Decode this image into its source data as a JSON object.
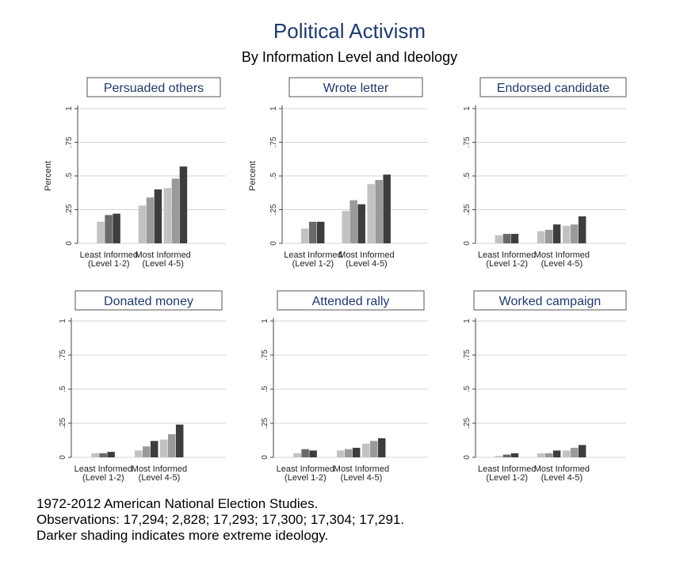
{
  "title": "Political Activism",
  "subtitle": "By Information Level and Ideology",
  "notes": [
    "1972-2012 American National Election Studies.",
    "Observations: 17,294; 2,828; 17,293; 17,300; 17,304; 17,291.",
    "Darker shading indicates more extreme ideology."
  ],
  "colors": {
    "light": "#c2c2c2",
    "mid": "#9a9a9a",
    "dark": "#6a6a6a",
    "darkest": "#3d3d3d",
    "panel_title": "#1f3a6b"
  },
  "chart_data": [
    {
      "type": "bar",
      "title": "Persuaded others",
      "ylabel": "Percent",
      "categories": [
        "Least Informed\n(Level 1-2)",
        "Most Informed\n(Level 4-5)"
      ],
      "yticks": [
        "0",
        ".25",
        ".5",
        ".75",
        "1"
      ],
      "ylim": [
        0,
        1
      ],
      "values": [
        [
          0.16,
          0.21,
          0.22
        ],
        [
          0.28,
          0.34,
          0.4,
          0.41,
          0.48,
          0.57
        ]
      ]
    },
    {
      "type": "bar",
      "title": "Wrote letter",
      "ylabel": "Percent",
      "categories": [
        "Least Informed\n(Level 1-2)",
        "Most Informed\n(Level 4-5)"
      ],
      "yticks": [
        "0",
        ".25",
        ".5",
        ".75",
        "1"
      ],
      "ylim": [
        0,
        1
      ],
      "values": [
        [
          0.11,
          0.16,
          0.16
        ],
        [
          0.24,
          0.32,
          0.29,
          0.44,
          0.47,
          0.51
        ]
      ]
    },
    {
      "type": "bar",
      "title": "Endorsed candidate",
      "ylabel": "",
      "categories": [
        "Least Informed\n(Level 1-2)",
        "Most Informed\n(Level 4-5)"
      ],
      "yticks": [
        "0",
        ".25",
        ".5",
        ".75",
        "1"
      ],
      "ylim": [
        0,
        1
      ],
      "values": [
        [
          0.06,
          0.07,
          0.07
        ],
        [
          0.09,
          0.1,
          0.14,
          0.13,
          0.14,
          0.2
        ]
      ]
    },
    {
      "type": "bar",
      "title": "Donated money",
      "ylabel": "",
      "categories": [
        "Least Informed\n(Level 1-2)",
        "Most Informed\n(Level 4-5)"
      ],
      "yticks": [
        "0",
        ".25",
        ".5",
        ".75",
        "1"
      ],
      "ylim": [
        0,
        1
      ],
      "values": [
        [
          0.03,
          0.03,
          0.04
        ],
        [
          0.05,
          0.08,
          0.12,
          0.13,
          0.17,
          0.24
        ]
      ]
    },
    {
      "type": "bar",
      "title": "Attended rally",
      "ylabel": "",
      "categories": [
        "Least Informed\n(Level 1-2)",
        "Most Informed\n(Level 4-5)"
      ],
      "yticks": [
        "0",
        ".25",
        ".5",
        ".75",
        "1"
      ],
      "ylim": [
        0,
        1
      ],
      "values": [
        [
          0.03,
          0.06,
          0.05
        ],
        [
          0.05,
          0.06,
          0.07,
          0.1,
          0.12,
          0.14
        ]
      ]
    },
    {
      "type": "bar",
      "title": "Worked campaign",
      "ylabel": "",
      "categories": [
        "Least Informed\n(Level 1-2)",
        "Most Informed\n(Level 4-5)"
      ],
      "yticks": [
        "0",
        ".25",
        ".5",
        ".75",
        "1"
      ],
      "ylim": [
        0,
        1
      ],
      "values": [
        [
          0.01,
          0.02,
          0.03
        ],
        [
          0.03,
          0.03,
          0.05,
          0.05,
          0.07,
          0.09
        ]
      ]
    }
  ]
}
